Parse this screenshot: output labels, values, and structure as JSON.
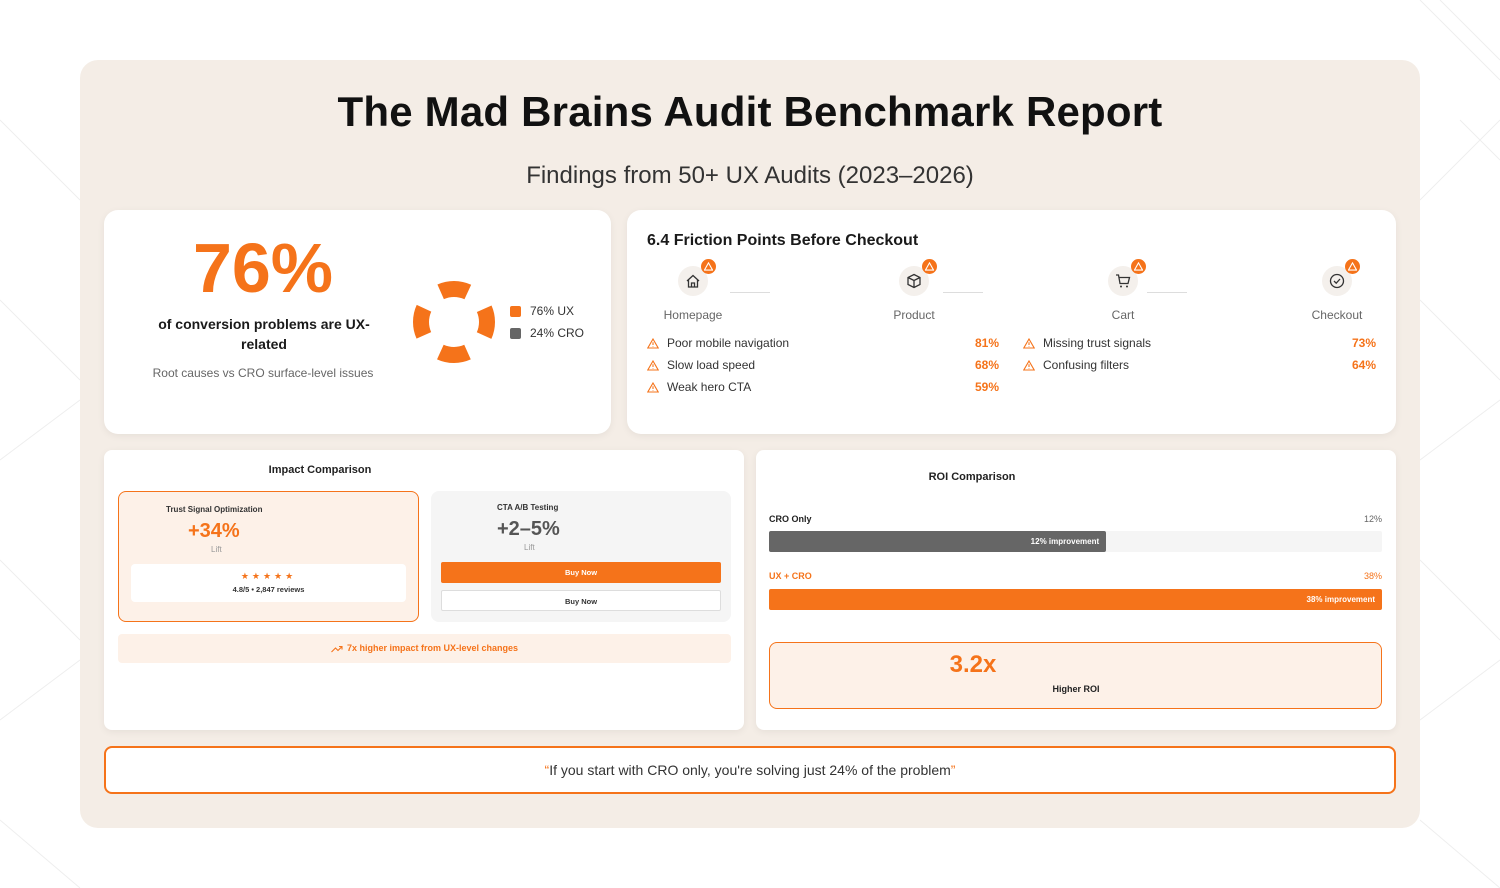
{
  "header": {
    "title": "The Mad Brains Audit Benchmark Report",
    "subtitle": "Findings from 50+ UX Audits (2023–2026)"
  },
  "stat_card": {
    "value": "76%",
    "label": "of conversion problems are UX-related",
    "sublabel": "Root causes vs CRO surface-level issues",
    "legend": [
      {
        "label": "76% UX",
        "color": "#f5731a"
      },
      {
        "label": "24% CRO",
        "color": "#666666"
      }
    ]
  },
  "friction_card": {
    "title": "6.4 Friction Points Before Checkout",
    "steps": [
      {
        "label": "Homepage",
        "icon": "home-icon"
      },
      {
        "label": "Product",
        "icon": "box-icon"
      },
      {
        "label": "Cart",
        "icon": "cart-icon"
      },
      {
        "label": "Checkout",
        "icon": "check-circle-icon"
      }
    ],
    "issues_left": [
      {
        "label": "Poor mobile navigation",
        "pct": "81%"
      },
      {
        "label": "Slow load speed",
        "pct": "68%"
      },
      {
        "label": "Weak hero CTA",
        "pct": "59%"
      }
    ],
    "issues_right": [
      {
        "label": "Missing trust signals",
        "pct": "73%"
      },
      {
        "label": "Confusing filters",
        "pct": "64%"
      }
    ]
  },
  "impact_card": {
    "title": "Impact Comparison",
    "trust": {
      "label": "Trust Signal Optimization",
      "value": "+34%",
      "sub": "Lift",
      "stars": "★★★★★",
      "reviews": "4.8/5 • 2,847 reviews"
    },
    "cta": {
      "label": "CTA A/B Testing",
      "value": "+2–5%",
      "sub": "Lift",
      "btn_primary": "Buy Now",
      "btn_secondary": "Buy Now"
    },
    "footer": "7x higher impact from UX-level changes"
  },
  "roi_card": {
    "title": "ROI Comparison",
    "rows": [
      {
        "label": "CRO Only",
        "pct": "12%",
        "bar_label": "12% improvement",
        "value": 0.55,
        "color": "#666666",
        "label_color": "#222222",
        "pct_color": "#666666"
      },
      {
        "label": "UX + CRO",
        "pct": "38%",
        "bar_label": "38% improvement",
        "value": 1.0,
        "color": "#f5731a",
        "label_color": "#f5731a",
        "pct_color": "#f5731a"
      }
    ],
    "multiplier": "3.2x",
    "multiplier_label": "Higher ROI"
  },
  "quote": {
    "open": "“",
    "text": "If you start with CRO only, you're solving just 24% of the problem",
    "close": "”"
  },
  "colors": {
    "accent": "#f5731a",
    "panel_bg": "#f4ede6",
    "grey": "#666666"
  }
}
